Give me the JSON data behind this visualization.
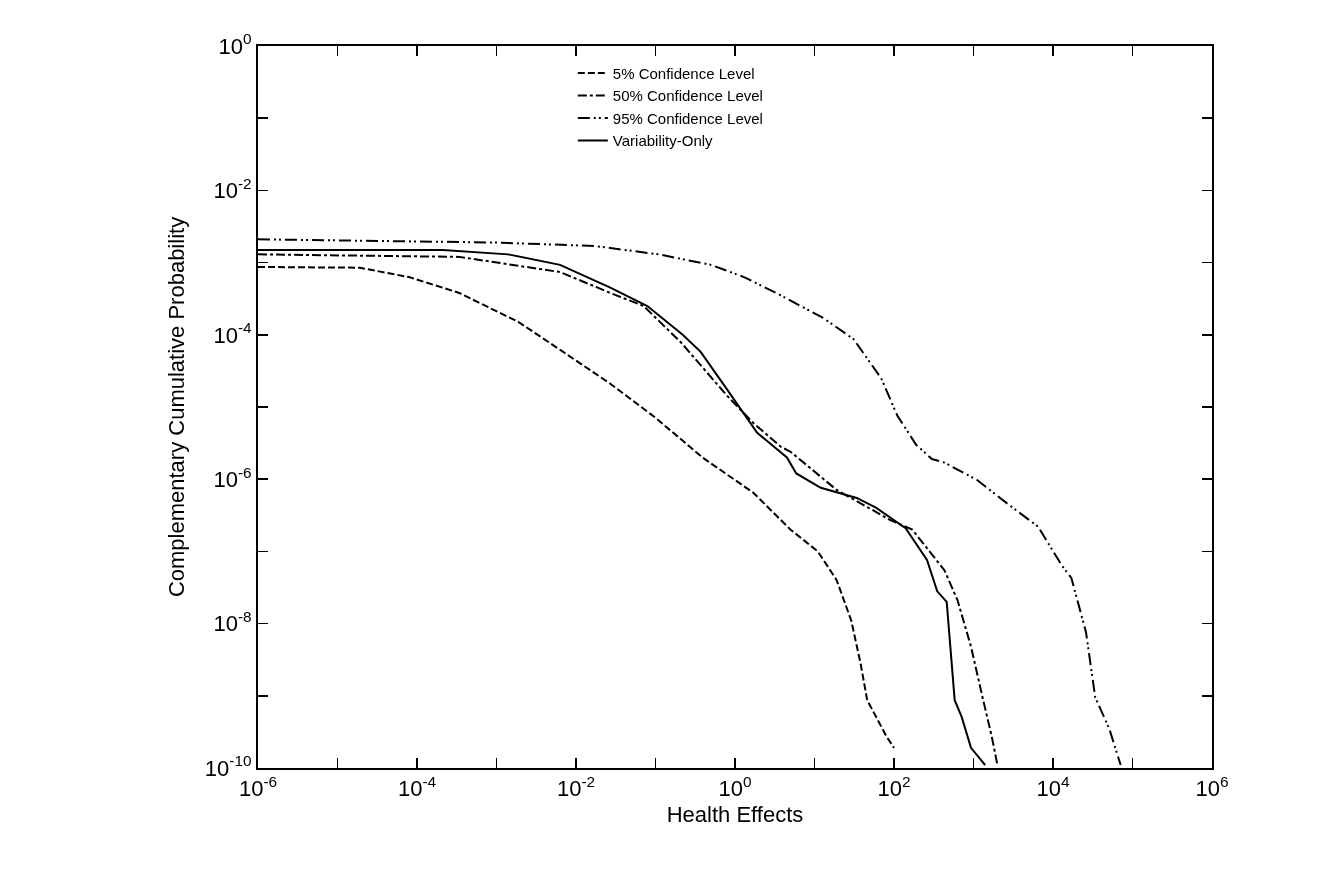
{
  "chart_data": {
    "type": "line",
    "xlabel": "Health Effects",
    "ylabel": "Complementary Cumulative Probability",
    "log": "xy",
    "grid": false,
    "legend": "top",
    "marker": "none",
    "xlim": [
      1e-06,
      1000000.0
    ],
    "ylim": [
      1e-10,
      1
    ],
    "xticks": [
      {
        "value": 1e-06,
        "label": "10$^{-6}$"
      },
      {
        "value": 1e-05,
        "label": null
      },
      {
        "value": 0.0001,
        "label": "10$^{-4}$"
      },
      {
        "value": 0.001,
        "label": null
      },
      {
        "value": 0.01,
        "label": "10$^{-2}$"
      },
      {
        "value": 0.1,
        "label": null
      },
      {
        "value": 1,
        "label": "10$^{0}$"
      },
      {
        "value": 10,
        "label": null
      },
      {
        "value": 100,
        "label": "10$^{2}$"
      },
      {
        "value": 1000,
        "label": null
      },
      {
        "value": 10000,
        "label": "10$^{4}$"
      },
      {
        "value": 100000,
        "label": null
      },
      {
        "value": 1000000,
        "label": "10$^{6}$"
      }
    ],
    "yticks": [
      {
        "value": 1e-10,
        "label": "10$^{-10}$"
      },
      {
        "value": 1e-09,
        "label": null
      },
      {
        "value": 1e-08,
        "label": "10$^{-8}$"
      },
      {
        "value": 1e-07,
        "label": null
      },
      {
        "value": 1e-06,
        "label": "10$^{-6}$"
      },
      {
        "value": 1e-05,
        "label": null
      },
      {
        "value": 0.0001,
        "label": "10$^{-4}$"
      },
      {
        "value": 0.001,
        "label": null
      },
      {
        "value": 0.01,
        "label": "10$^{-2}$"
      },
      {
        "value": 0.1,
        "label": null
      },
      {
        "value": 1,
        "label": "10$^{0}$"
      }
    ],
    "series": [
      {
        "name": "5% Confidence Level",
        "color": "#000000",
        "line_style": "dashed",
        "x": [
          1e-06,
          1.9e-05,
          7.9e-05,
          0.00034,
          0.0019,
          0.0063,
          0.027,
          0.1,
          0.39,
          1.7,
          5.0,
          11,
          19,
          29,
          38,
          46,
          81,
          100
        ],
        "values": [
          0.00087,
          0.00085,
          0.00063,
          0.00038,
          0.00015,
          6.2e-05,
          2.1e-05,
          7.1e-06,
          2e-06,
          6.5e-07,
          2e-07,
          1e-07,
          4e-08,
          1.1e-08,
          2.8e-09,
          8.7e-10,
          2.7e-10,
          1.9e-10
        ]
      },
      {
        "name": "50% Confidence Level",
        "color": "#000000",
        "line_style": "dashdot",
        "x": [
          1e-06,
          0.00034,
          0.0063,
          0.027,
          0.071,
          0.21,
          0.81,
          1.7,
          3.8,
          5.0,
          19,
          91,
          170,
          430,
          630,
          930,
          1300,
          1700,
          2000
        ],
        "values": [
          0.0013,
          0.0012,
          0.00074,
          0.00038,
          0.00025,
          7.8e-05,
          1.4e-05,
          6e-06,
          2.8e-06,
          2.4e-06,
          7.1e-07,
          2.7e-07,
          2e-07,
          5.5e-08,
          2.1e-08,
          4.8e-09,
          9.5e-10,
          2.7e-10,
          1.1e-10
        ]
      },
      {
        "name": "95% Confidence Level",
        "color": "#000000",
        "line_style": "dotted",
        "x": [
          1e-06,
          0.00089,
          0.017,
          0.11,
          0.5,
          1.3,
          3.8,
          13,
          31,
          69,
          110,
          190,
          300,
          430,
          1100,
          2800,
          6500,
          13000,
          17000,
          26000,
          34000,
          51000,
          71000
        ],
        "values": [
          0.0021,
          0.0019,
          0.0017,
          0.0013,
          0.00093,
          0.00063,
          0.00035,
          0.00017,
          8.7e-05,
          2.5e-05,
          7.6e-06,
          3e-06,
          1.9e-06,
          1.7e-06,
          9.8e-07,
          4.4e-07,
          2.2e-07,
          6.3e-08,
          4.3e-08,
          7.6e-09,
          9.5e-10,
          3.5e-10,
          1.1e-10
        ]
      },
      {
        "name": "Variability-Only",
        "color": "#000000",
        "line_style": "solid",
        "x": [
          1e-06,
          0.00021,
          0.0014,
          0.0063,
          0.027,
          0.079,
          0.22,
          0.37,
          0.81,
          1.9,
          4.5,
          5.9,
          12,
          34,
          60,
          140,
          260,
          350,
          460,
          580,
          710,
          930,
          1400
        ],
        "values": [
          0.0015,
          0.0015,
          0.0013,
          0.00093,
          0.00045,
          0.00025,
          0.0001,
          5.8e-05,
          1.7e-05,
          4.4e-06,
          2e-06,
          1.2e-06,
          7.6e-07,
          5.5e-07,
          4e-07,
          2.1e-07,
          7.6e-08,
          2.8e-08,
          2e-08,
          8.7e-10,
          5.1e-10,
          1.9e-10,
          1.1e-10
        ]
      }
    ]
  }
}
